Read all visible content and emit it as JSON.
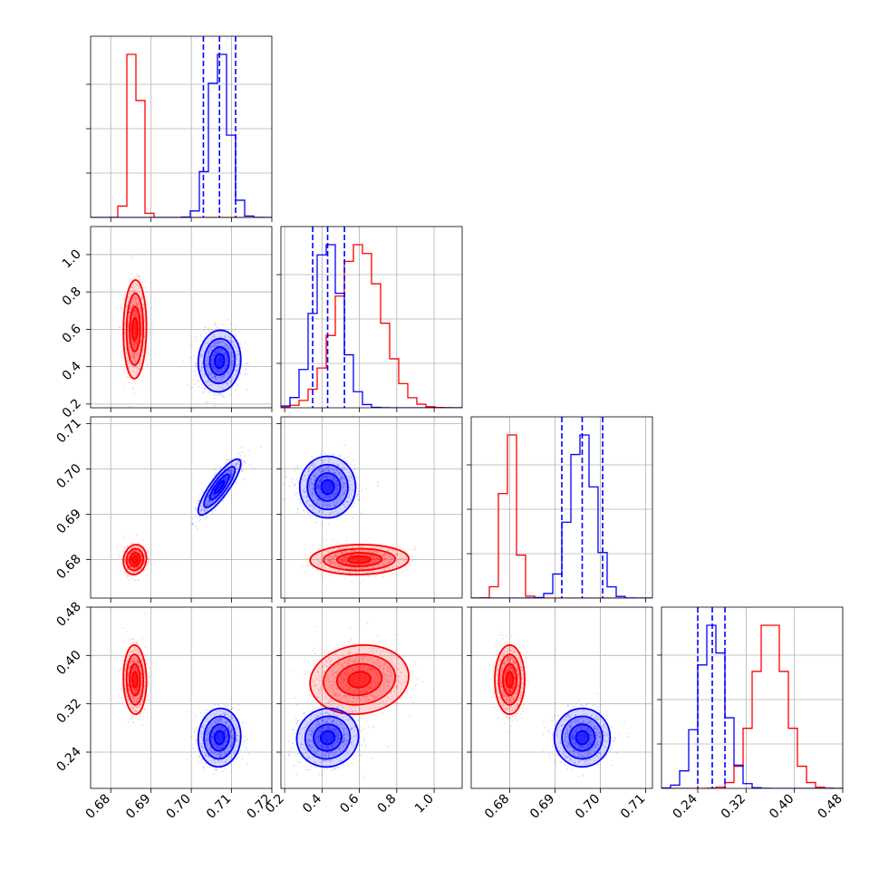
{
  "chart_data": {
    "type": "corner",
    "colors": {
      "red": "#ff0000",
      "blue": "#0000ff"
    },
    "series": [
      {
        "color": "red",
        "means": [
          0.686,
          0.6,
          0.68,
          0.36
        ],
        "sds": [
          0.0013,
          0.12,
          0.0015,
          0.026
        ],
        "corr": [
          [
            0,
            1,
            0.05
          ],
          [
            0,
            2,
            0.1
          ],
          [
            0,
            3,
            -0.05
          ],
          [
            1,
            2,
            0.05
          ],
          [
            1,
            3,
            0.1
          ],
          [
            2,
            3,
            0.0
          ]
        ]
      },
      {
        "color": "blue",
        "means": [
          0.707,
          0.43,
          0.696,
          0.264
        ],
        "sds": [
          0.0024,
          0.075,
          0.0028,
          0.022
        ],
        "corr": [
          [
            0,
            1,
            0.05
          ],
          [
            0,
            2,
            0.85
          ],
          [
            0,
            3,
            0.05
          ],
          [
            1,
            2,
            0.0
          ],
          [
            1,
            3,
            0.05
          ],
          [
            2,
            3,
            0.0
          ]
        ]
      }
    ],
    "quantiles": {
      "color": "blue",
      "values": [
        [
          0.703,
          0.707,
          0.711
        ],
        [
          0.35,
          0.43,
          0.52
        ],
        [
          0.6915,
          0.696,
          0.7005
        ],
        [
          0.24,
          0.264,
          0.285
        ]
      ]
    },
    "parameters": [
      {
        "range": [
          0.675,
          0.72
        ],
        "ticks": [
          0.68,
          0.69,
          0.7,
          0.71,
          0.72
        ],
        "tick_labels": [
          "0.68",
          "0.69",
          "0.70",
          "0.71",
          "0.72"
        ]
      },
      {
        "range": [
          0.18,
          1.15
        ],
        "ticks": [
          0.2,
          0.4,
          0.6,
          0.8,
          1.0
        ],
        "tick_labels": [
          "0.2",
          "0.4",
          "0.6",
          "0.8",
          "1.0"
        ]
      },
      {
        "range": [
          0.6715,
          0.7115
        ],
        "ticks": [
          0.68,
          0.69,
          0.7,
          0.71
        ],
        "tick_labels": [
          "0.68",
          "0.69",
          "0.70",
          "0.71"
        ]
      },
      {
        "range": [
          0.18,
          0.48
        ],
        "ticks": [
          0.24,
          0.32,
          0.4,
          0.48
        ],
        "tick_labels": [
          "0.24",
          "0.32",
          "0.40",
          "0.48"
        ]
      }
    ],
    "grid": true,
    "title": "",
    "xlabel": "",
    "ylabel": ""
  }
}
